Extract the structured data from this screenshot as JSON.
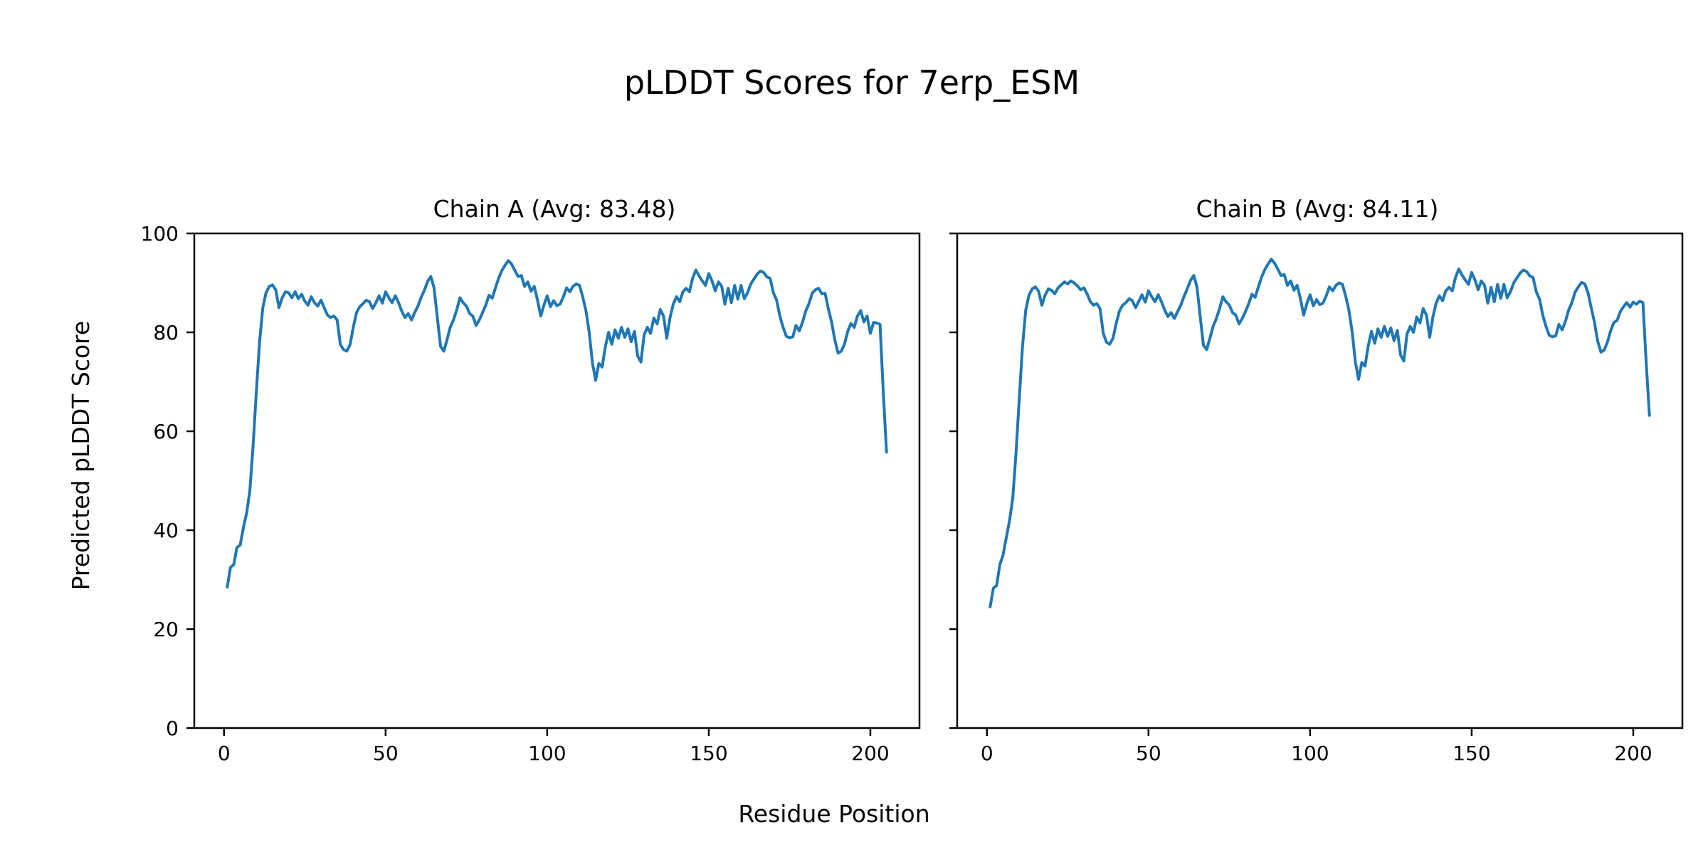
{
  "figure": {
    "title": "pLDDT Scores for 7erp_ESM",
    "xlabel": "Residue Position",
    "ylabel": "Predicted pLDDT Score",
    "line_color": "#1f77b4",
    "background": "#ffffff",
    "text_color": "#000000"
  },
  "chart_data": [
    {
      "type": "line",
      "title": "Chain A (Avg: 83.48)",
      "chain": "A",
      "avg": 83.48,
      "x_start": 1,
      "x_step": 1,
      "xticks": [
        0,
        50,
        100,
        150,
        200
      ],
      "yticks": [
        0,
        20,
        40,
        60,
        80,
        100
      ],
      "xtick_labels": [
        "0",
        "50",
        "100",
        "150",
        "200"
      ],
      "ytick_labels": [
        "0",
        "20",
        "40",
        "60",
        "80",
        "100"
      ],
      "xlim": [
        -9.2,
        215.2
      ],
      "ylim": [
        0,
        100
      ],
      "grid": false,
      "legend": null,
      "values": [
        28.5,
        32.5,
        33.0,
        36.5,
        37.0,
        40.5,
        43.5,
        48.0,
        57.0,
        68.0,
        78.0,
        85.0,
        88.0,
        89.3,
        89.6,
        88.6,
        85.0,
        87.0,
        88.2,
        88.0,
        87.0,
        88.2,
        86.8,
        87.7,
        86.3,
        85.5,
        87.2,
        86.0,
        85.3,
        86.5,
        85.0,
        83.5,
        83.0,
        83.3,
        82.5,
        77.5,
        76.5,
        76.2,
        77.5,
        81.0,
        84.0,
        85.2,
        85.8,
        86.5,
        86.2,
        84.8,
        86.0,
        87.4,
        85.9,
        88.2,
        87.0,
        86.0,
        87.4,
        86.0,
        84.3,
        83.0,
        83.8,
        82.5,
        84.0,
        85.3,
        87.1,
        88.5,
        90.3,
        91.3,
        89.0,
        83.0,
        77.2,
        76.2,
        78.5,
        81.0,
        82.5,
        84.5,
        87.0,
        86.0,
        85.3,
        83.8,
        83.3,
        81.4,
        82.5,
        84.0,
        85.5,
        87.5,
        86.9,
        89.0,
        91.0,
        92.5,
        93.6,
        94.5,
        93.8,
        92.5,
        91.3,
        91.5,
        89.3,
        90.2,
        88.3,
        89.3,
        86.5,
        83.3,
        85.5,
        87.4,
        85.2,
        86.4,
        85.4,
        85.7,
        87.2,
        89.0,
        88.2,
        89.3,
        89.8,
        89.5,
        87.2,
        84.3,
        80.0,
        73.8,
        70.3,
        73.7,
        73.0,
        77.1,
        80.0,
        77.6,
        80.5,
        78.8,
        81.0,
        79.0,
        80.7,
        78.1,
        80.2,
        75.2,
        74.0,
        79.5,
        81.0,
        79.8,
        82.9,
        81.7,
        84.6,
        83.3,
        78.8,
        82.9,
        85.7,
        87.2,
        86.2,
        88.2,
        88.9,
        88.2,
        90.9,
        92.6,
        91.4,
        90.4,
        89.5,
        91.9,
        90.4,
        88.4,
        90.2,
        89.3,
        85.7,
        88.9,
        86.0,
        89.5,
        86.7,
        89.5,
        86.8,
        88.0,
        89.8,
        90.8,
        91.8,
        92.4,
        92.1,
        91.2,
        90.9,
        88.0,
        86.5,
        83.3,
        81.0,
        79.2,
        78.9,
        79.1,
        81.4,
        80.3,
        82.0,
        84.3,
        85.8,
        87.9,
        88.6,
        88.9,
        87.8,
        87.9,
        84.8,
        82.1,
        78.5,
        75.8,
        76.2,
        77.6,
        80.2,
        81.8,
        81.0,
        83.3,
        84.4,
        82.1,
        83.3,
        79.8,
        82.0,
        81.9,
        81.6,
        68.0,
        55.8
      ]
    },
    {
      "type": "line",
      "title": "Chain B (Avg: 84.11)",
      "chain": "B",
      "avg": 84.11,
      "x_start": 1,
      "x_step": 1,
      "xticks": [
        0,
        50,
        100,
        150,
        200
      ],
      "yticks": [
        0,
        20,
        40,
        60,
        80,
        100
      ],
      "xtick_labels": [
        "0",
        "50",
        "100",
        "150",
        "200"
      ],
      "ytick_labels": [],
      "xlim": [
        -9.2,
        215.2
      ],
      "ylim": [
        0,
        100
      ],
      "grid": false,
      "legend": null,
      "values": [
        24.5,
        28.3,
        28.8,
        33.0,
        35.0,
        38.5,
        42.0,
        46.5,
        55.5,
        66.5,
        77.0,
        84.5,
        87.5,
        88.8,
        89.2,
        88.3,
        85.5,
        87.5,
        88.8,
        88.5,
        87.8,
        89.0,
        89.6,
        90.2,
        89.8,
        90.4,
        90.0,
        89.4,
        88.6,
        89.0,
        87.8,
        86.2,
        85.5,
        85.8,
        84.8,
        79.8,
        78.0,
        77.6,
        78.8,
        81.8,
        84.3,
        85.5,
        86.0,
        86.8,
        86.4,
        85.0,
        86.3,
        87.6,
        86.1,
        88.4,
        87.2,
        86.2,
        87.6,
        86.2,
        84.5,
        83.2,
        84.0,
        82.8,
        84.2,
        85.5,
        87.3,
        88.8,
        90.5,
        91.5,
        89.2,
        83.2,
        77.4,
        76.5,
        78.8,
        81.2,
        82.8,
        84.8,
        87.2,
        86.2,
        85.5,
        84.0,
        83.5,
        81.7,
        82.8,
        84.2,
        85.8,
        87.7,
        87.1,
        89.2,
        91.2,
        92.7,
        93.8,
        94.8,
        94.0,
        92.8,
        91.5,
        91.7,
        89.5,
        90.4,
        88.5,
        89.5,
        86.8,
        83.5,
        85.8,
        87.6,
        85.4,
        86.6,
        85.6,
        85.9,
        87.4,
        89.2,
        88.4,
        89.5,
        90.0,
        89.7,
        87.4,
        84.5,
        80.2,
        74.0,
        70.5,
        73.9,
        73.2,
        77.3,
        80.2,
        77.8,
        80.7,
        79.0,
        81.2,
        79.2,
        80.9,
        78.3,
        80.4,
        75.4,
        74.2,
        79.7,
        81.2,
        80.0,
        83.1,
        81.9,
        84.8,
        83.5,
        79.0,
        83.1,
        85.9,
        87.4,
        86.4,
        88.4,
        89.1,
        88.4,
        91.1,
        92.8,
        91.6,
        90.6,
        89.7,
        92.1,
        90.6,
        88.6,
        90.4,
        89.5,
        85.9,
        89.1,
        86.2,
        89.7,
        86.9,
        89.7,
        87.0,
        88.2,
        90.0,
        91.0,
        92.0,
        92.6,
        92.3,
        91.4,
        91.1,
        88.2,
        86.7,
        83.5,
        81.2,
        79.4,
        79.1,
        79.3,
        81.6,
        80.5,
        82.2,
        84.5,
        86.0,
        88.1,
        89.2,
        90.1,
        89.8,
        88.0,
        85.0,
        82.0,
        78.2,
        76.0,
        76.4,
        78.0,
        80.3,
        82.0,
        82.4,
        84.2,
        85.2,
        86.0,
        85.1,
        86.1,
        85.7,
        86.3,
        86.0,
        74.0,
        63.2
      ]
    }
  ]
}
